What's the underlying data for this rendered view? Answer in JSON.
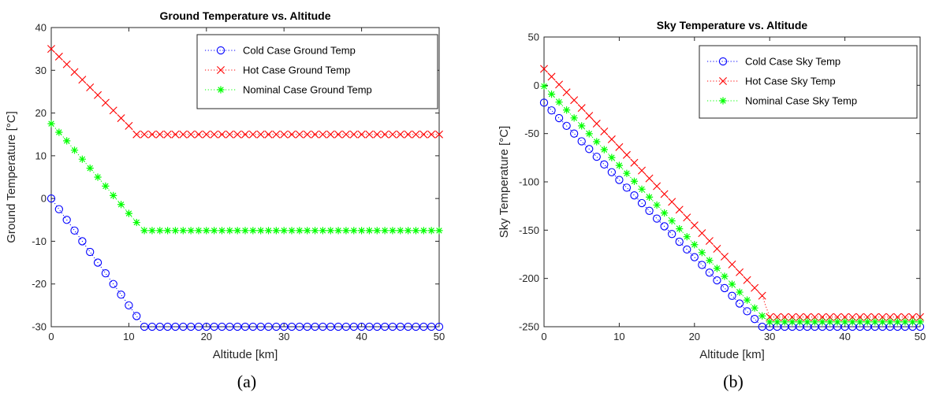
{
  "captions": [
    "(a)",
    "(b)"
  ],
  "chart_data": [
    {
      "type": "line",
      "title": "Ground Temperature vs. Altitude",
      "xlabel": "Altitude [km]",
      "ylabel": "Ground Temperature [°C]",
      "xlim": [
        0,
        50
      ],
      "ylim": [
        -30,
        40
      ],
      "xticks": [
        0,
        10,
        20,
        30,
        40,
        50
      ],
      "yticks": [
        -30,
        -20,
        -10,
        0,
        10,
        20,
        30,
        40
      ],
      "grid": false,
      "legend_position": "top-right",
      "x": [
        0,
        1,
        2,
        3,
        4,
        5,
        6,
        7,
        8,
        9,
        10,
        11,
        12,
        13,
        14,
        15,
        16,
        17,
        18,
        19,
        20,
        21,
        22,
        23,
        24,
        25,
        26,
        27,
        28,
        29,
        30,
        31,
        32,
        33,
        34,
        35,
        36,
        37,
        38,
        39,
        40,
        41,
        42,
        43,
        44,
        45,
        46,
        47,
        48,
        49,
        50
      ],
      "series": [
        {
          "name": "Cold Case Ground Temp",
          "color": "#0000ff",
          "marker": "circle",
          "values": [
            0,
            -2.5,
            -5,
            -7.5,
            -10,
            -12.5,
            -15,
            -17.5,
            -20,
            -22.5,
            -25,
            -27.5,
            -30,
            -30,
            -30,
            -30,
            -30,
            -30,
            -30,
            -30,
            -30,
            -30,
            -30,
            -30,
            -30,
            -30,
            -30,
            -30,
            -30,
            -30,
            -30,
            -30,
            -30,
            -30,
            -30,
            -30,
            -30,
            -30,
            -30,
            -30,
            -30,
            -30,
            -30,
            -30,
            -30,
            -30,
            -30,
            -30,
            -30,
            -30,
            -30
          ]
        },
        {
          "name": "Hot Case Ground Temp",
          "color": "#ff0000",
          "marker": "x",
          "values": [
            35,
            33.2,
            31.4,
            29.6,
            27.8,
            26,
            24.2,
            22.4,
            20.6,
            18.8,
            17,
            15,
            15,
            15,
            15,
            15,
            15,
            15,
            15,
            15,
            15,
            15,
            15,
            15,
            15,
            15,
            15,
            15,
            15,
            15,
            15,
            15,
            15,
            15,
            15,
            15,
            15,
            15,
            15,
            15,
            15,
            15,
            15,
            15,
            15,
            15,
            15,
            15,
            15,
            15,
            15
          ]
        },
        {
          "name": "Nominal Case Ground Temp",
          "color": "#00ff00",
          "marker": "star",
          "values": [
            17.5,
            15.5,
            13.5,
            11.3,
            9.2,
            7.1,
            5,
            2.9,
            0.7,
            -1.4,
            -3.5,
            -5.6,
            -7.5,
            -7.5,
            -7.5,
            -7.5,
            -7.5,
            -7.5,
            -7.5,
            -7.5,
            -7.5,
            -7.5,
            -7.5,
            -7.5,
            -7.5,
            -7.5,
            -7.5,
            -7.5,
            -7.5,
            -7.5,
            -7.5,
            -7.5,
            -7.5,
            -7.5,
            -7.5,
            -7.5,
            -7.5,
            -7.5,
            -7.5,
            -7.5,
            -7.5,
            -7.5,
            -7.5,
            -7.5,
            -7.5,
            -7.5,
            -7.5,
            -7.5,
            -7.5,
            -7.5,
            -7.5
          ]
        }
      ]
    },
    {
      "type": "line",
      "title": "Sky Temperature vs. Altitude",
      "xlabel": "Altitude [km]",
      "ylabel": "Sky Temperature [°C]",
      "xlim": [
        0,
        50
      ],
      "ylim": [
        -250,
        50
      ],
      "xticks": [
        0,
        10,
        20,
        30,
        40,
        50
      ],
      "yticks": [
        -250,
        -200,
        -150,
        -100,
        -50,
        0,
        50
      ],
      "grid": false,
      "legend_position": "top-right",
      "x": [
        0,
        1,
        2,
        3,
        4,
        5,
        6,
        7,
        8,
        9,
        10,
        11,
        12,
        13,
        14,
        15,
        16,
        17,
        18,
        19,
        20,
        21,
        22,
        23,
        24,
        25,
        26,
        27,
        28,
        29,
        30,
        31,
        32,
        33,
        34,
        35,
        36,
        37,
        38,
        39,
        40,
        41,
        42,
        43,
        44,
        45,
        46,
        47,
        48,
        49,
        50
      ],
      "series": [
        {
          "name": "Cold Case Sky Temp",
          "color": "#0000ff",
          "marker": "circle",
          "values": [
            -18,
            -26,
            -34,
            -42,
            -50,
            -58,
            -66,
            -74,
            -82,
            -90,
            -98,
            -106,
            -114,
            -122,
            -130,
            -138,
            -146,
            -154,
            -162,
            -170,
            -178,
            -186,
            -194,
            -202,
            -210,
            -218,
            -226,
            -234,
            -242,
            -250,
            -250,
            -250,
            -250,
            -250,
            -250,
            -250,
            -250,
            -250,
            -250,
            -250,
            -250,
            -250,
            -250,
            -250,
            -250,
            -250,
            -250,
            -250,
            -250,
            -250,
            -250
          ]
        },
        {
          "name": "Hot Case Sky Temp",
          "color": "#ff0000",
          "marker": "x",
          "values": [
            17,
            8.9,
            0.8,
            -7.3,
            -15.4,
            -23.5,
            -31.6,
            -39.7,
            -47.8,
            -55.9,
            -64,
            -72.1,
            -80.2,
            -88.3,
            -96.4,
            -104.5,
            -112.6,
            -120.7,
            -128.8,
            -136.9,
            -145,
            -153.1,
            -161.2,
            -169.3,
            -177.4,
            -185.5,
            -193.6,
            -201.7,
            -209.8,
            -217.9,
            -240,
            -240,
            -240,
            -240,
            -240,
            -240,
            -240,
            -240,
            -240,
            -240,
            -240,
            -240,
            -240,
            -240,
            -240,
            -240,
            -240,
            -240,
            -240,
            -240,
            -240
          ]
        },
        {
          "name": "Nominal Case Sky Temp",
          "color": "#00ff00",
          "marker": "star",
          "values": [
            -1,
            -9.2,
            -17.4,
            -25.6,
            -33.8,
            -42,
            -50.2,
            -58.4,
            -66.6,
            -74.8,
            -83,
            -91.2,
            -99.4,
            -107.6,
            -115.8,
            -124,
            -132.2,
            -140.4,
            -148.6,
            -156.8,
            -165,
            -173.2,
            -181.4,
            -189.6,
            -197.8,
            -206,
            -214.2,
            -222.4,
            -230.6,
            -238.8,
            -245,
            -245,
            -245,
            -245,
            -245,
            -245,
            -245,
            -245,
            -245,
            -245,
            -245,
            -245,
            -245,
            -245,
            -245,
            -245,
            -245,
            -245,
            -245,
            -245,
            -245
          ]
        }
      ]
    }
  ]
}
